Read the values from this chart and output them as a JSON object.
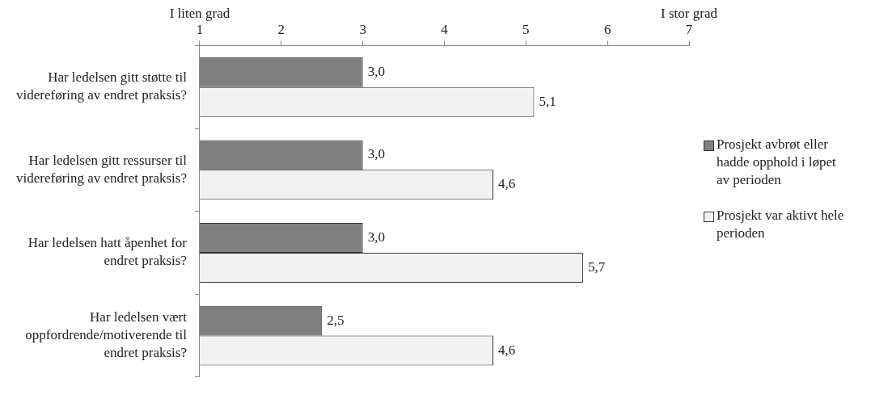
{
  "chart_data": {
    "type": "bar",
    "orientation": "horizontal",
    "categories": [
      "Har ledelsen gitt støtte til videreføring av endret praksis?",
      "Har ledelsen gitt ressurser til videreføring av endret praksis?",
      "Har ledelsen hatt åpenhet for endret praksis?",
      "Har ledelsen vært oppfordrende/motiverende til endret praksis?"
    ],
    "series": [
      {
        "name": "Prosjekt avbrøt eller hadde opphold i løpet av perioden",
        "color": "#808080",
        "values": [
          3.0,
          3.0,
          3.0,
          2.5
        ],
        "value_labels": [
          "3,0",
          "3,0",
          "3,0",
          "2,5"
        ]
      },
      {
        "name": "Prosjekt var aktivt hele perioden",
        "color": "#f2f2f2",
        "values": [
          5.1,
          4.6,
          5.7,
          4.6
        ],
        "value_labels": [
          "5,1",
          "4,6",
          "5,7",
          "4,6"
        ]
      }
    ],
    "xlim": [
      1,
      7
    ],
    "xticks": [
      1,
      2,
      3,
      4,
      5,
      6,
      7
    ],
    "annotations": [
      "I liten grad",
      "I stor grad"
    ],
    "grid": false,
    "legend": "right"
  }
}
